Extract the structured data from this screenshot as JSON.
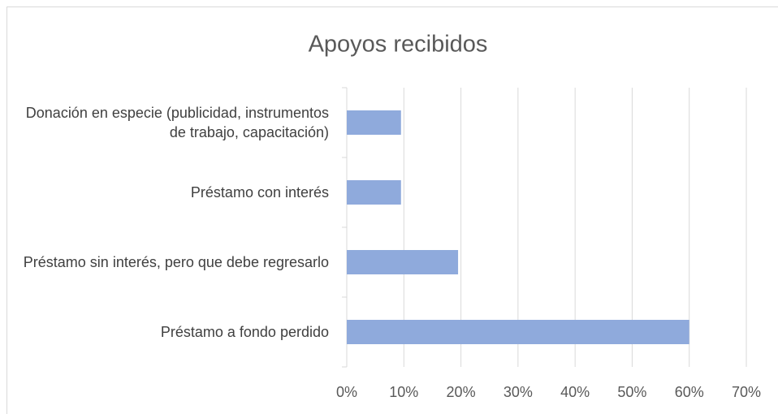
{
  "chart_data": {
    "type": "bar",
    "orientation": "horizontal",
    "title": "Apoyos recibidos",
    "categories": [
      "Donación en especie (publicidad, instrumentos de trabajo, capacitación)",
      "Préstamo con interés",
      "Préstamo sin interés, pero que debe regresarlo",
      "Préstamo a fondo perdido"
    ],
    "values": [
      9.5,
      9.5,
      19.5,
      60
    ],
    "color": "#8faadc",
    "xlim": [
      0,
      70
    ],
    "xticks": [
      {
        "value": 0,
        "label": "0%"
      },
      {
        "value": 10,
        "label": "10%"
      },
      {
        "value": 20,
        "label": "20%"
      },
      {
        "value": 30,
        "label": "30%"
      },
      {
        "value": 40,
        "label": "40%"
      },
      {
        "value": 50,
        "label": "50%"
      },
      {
        "value": 60,
        "label": "60%"
      },
      {
        "value": 70,
        "label": "70%"
      }
    ],
    "grid": true
  }
}
